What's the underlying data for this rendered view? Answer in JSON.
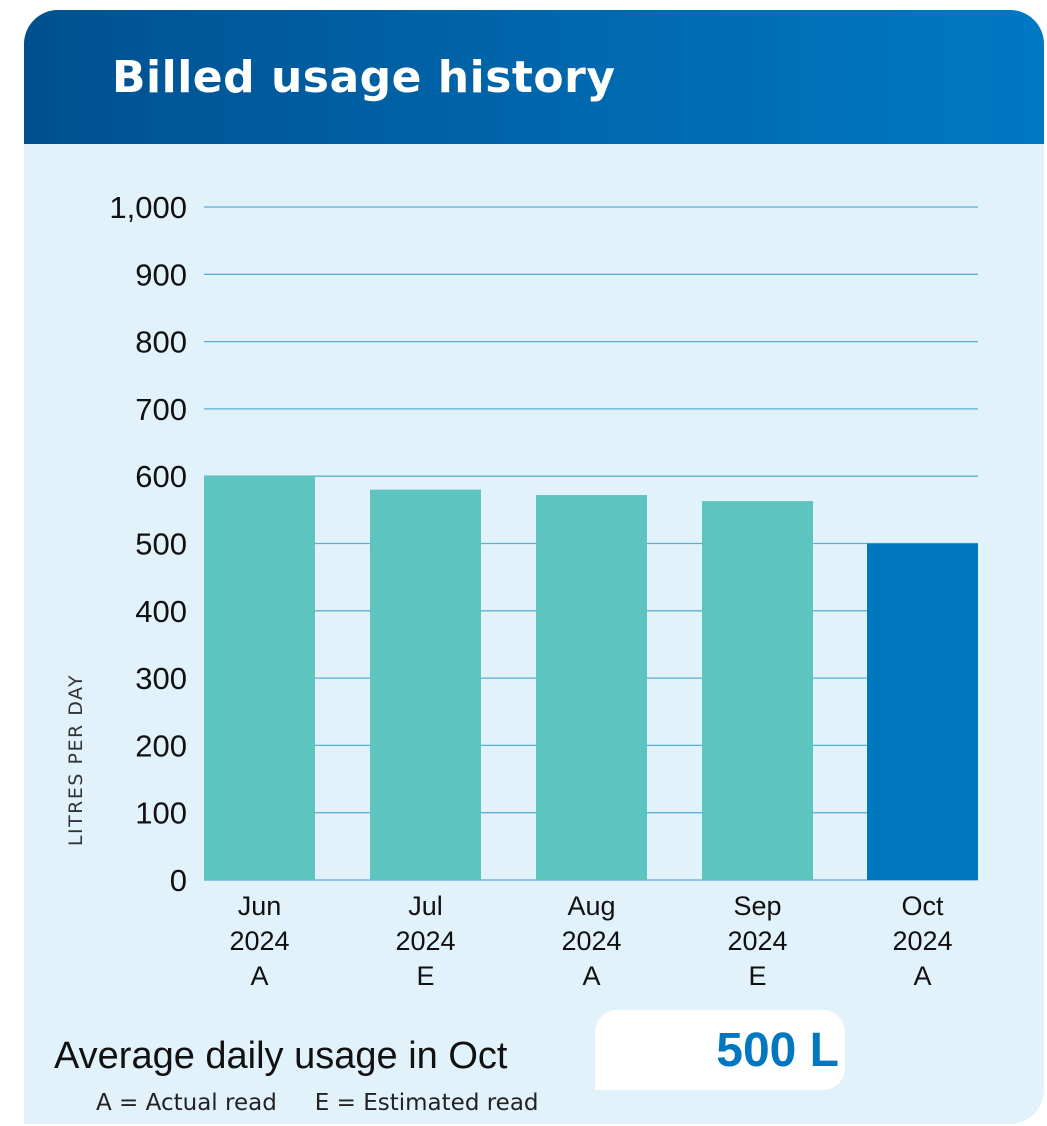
{
  "header": {
    "title": "Billed usage history"
  },
  "chart_data": {
    "type": "bar",
    "ylabel": "LITRES PER DAY",
    "ylim": [
      0,
      1000
    ],
    "yticks": [
      0,
      100,
      200,
      300,
      400,
      500,
      600,
      700,
      800,
      900,
      1000
    ],
    "ytick_labels": [
      "0",
      "100",
      "200",
      "300",
      "400",
      "500",
      "600",
      "700",
      "800",
      "900",
      "1,000"
    ],
    "grid": true,
    "categories": [
      {
        "month": "Jun",
        "year": "2024",
        "read": "A"
      },
      {
        "month": "Jul",
        "year": "2024",
        "read": "E"
      },
      {
        "month": "Aug",
        "year": "2024",
        "read": "A"
      },
      {
        "month": "Sep",
        "year": "2024",
        "read": "E"
      },
      {
        "month": "Oct",
        "year": "2024",
        "read": "A"
      }
    ],
    "values": [
      600,
      580,
      572,
      563,
      500
    ],
    "highlight_index": 4,
    "colors": {
      "bar": "#5ec4bf",
      "highlight": "#0077be",
      "grid": "#5aafd8"
    }
  },
  "summary": {
    "label": "Average daily usage in Oct",
    "value": "500 L"
  },
  "legend": {
    "actual": "A = Actual read",
    "estimated": "E = Estimated read"
  }
}
